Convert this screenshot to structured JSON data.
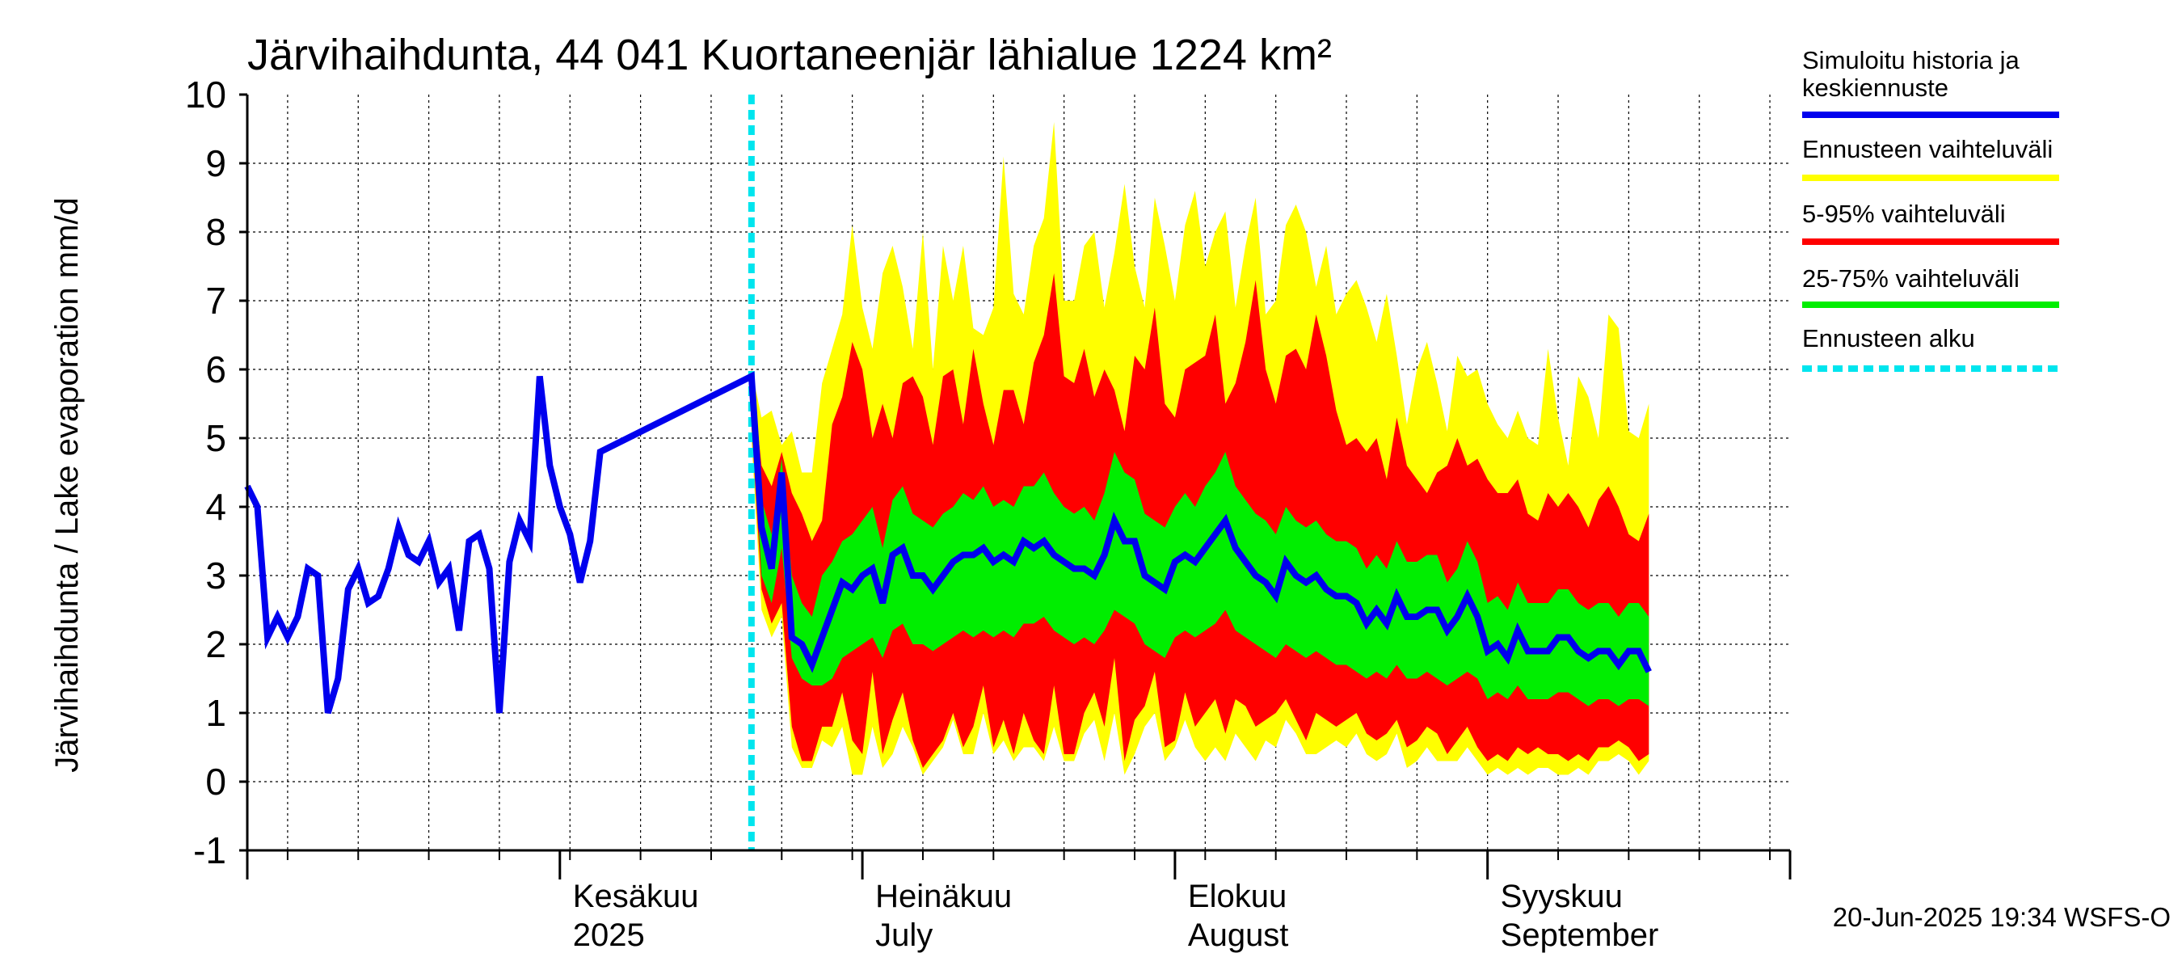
{
  "chart_data": {
    "type": "area",
    "title": "Järvihaihdunta, 44 041 Kuortaneenjär lähialue 1224 km²",
    "ylabel": "Järvihaihdunta / Lake evaporation   mm/d",
    "ylim": [
      -1,
      10
    ],
    "yticks": [
      "-1",
      "0",
      "1",
      "2",
      "3",
      "4",
      "5",
      "6",
      "7",
      "8",
      "9",
      "10"
    ],
    "x_start": "2025-05-01",
    "x_end": "2025-09-30",
    "forecast_start": "2025-06-20",
    "grid": true,
    "month_labels": [
      {
        "fi": "Kesäkuu",
        "en": "2025",
        "date": "2025-06-01"
      },
      {
        "fi": "Heinäkuu",
        "en": "July",
        "date": "2025-07-01"
      },
      {
        "fi": "Elokuu",
        "en": "August",
        "date": "2025-08-01"
      },
      {
        "fi": "Syyskuu",
        "en": "September",
        "date": "2025-09-01"
      }
    ],
    "history": {
      "start": "2025-05-01",
      "values": [
        4.3,
        4.0,
        2.1,
        2.4,
        2.1,
        2.4,
        3.1,
        3.0,
        1.0,
        1.5,
        2.8,
        3.1,
        2.6,
        2.7,
        3.1,
        3.7,
        3.3,
        3.2,
        3.5,
        2.9,
        3.1,
        2.2,
        3.5,
        3.6,
        3.1,
        1.0,
        3.2,
        3.8,
        3.5,
        5.9,
        4.6,
        4.0,
        3.6,
        2.9,
        3.5,
        4.8
      ]
    },
    "forecast": {
      "start": "2025-06-20",
      "mean": [
        5.9,
        3.7,
        3.1,
        4.5,
        2.1,
        2.0,
        1.7,
        2.1,
        2.5,
        2.9,
        2.8,
        3.0,
        3.1,
        2.6,
        3.3,
        3.4,
        3.0,
        3.0,
        2.8,
        3.0,
        3.2,
        3.3,
        3.3,
        3.4,
        3.2,
        3.3,
        3.2,
        3.5,
        3.4,
        3.5,
        3.3,
        3.2,
        3.1,
        3.1,
        3.0,
        3.3,
        3.8,
        3.5,
        3.5,
        3.0,
        2.9,
        2.8,
        3.2,
        3.3,
        3.2,
        3.4,
        3.6,
        3.8,
        3.4,
        3.2,
        3.0,
        2.9,
        2.7,
        3.2,
        3.0,
        2.9,
        3.0,
        2.8,
        2.7,
        2.7,
        2.6,
        2.3,
        2.5,
        2.3,
        2.7,
        2.4,
        2.4,
        2.5,
        2.5,
        2.2,
        2.4,
        2.7,
        2.4,
        1.9,
        2.0,
        1.8,
        2.2,
        1.9,
        1.9,
        1.9,
        2.1,
        2.1,
        1.9,
        1.8,
        1.9,
        1.9,
        1.7,
        1.9,
        1.9,
        1.6
      ],
      "p25": [
        5.6,
        3.0,
        2.6,
        3.4,
        1.8,
        1.5,
        1.4,
        1.4,
        1.5,
        1.8,
        1.9,
        2.0,
        2.1,
        1.8,
        2.2,
        2.3,
        2.0,
        2.0,
        1.9,
        2.0,
        2.1,
        2.2,
        2.1,
        2.2,
        2.1,
        2.2,
        2.1,
        2.3,
        2.3,
        2.4,
        2.2,
        2.1,
        2.0,
        2.1,
        2.0,
        2.2,
        2.5,
        2.4,
        2.3,
        2.0,
        1.9,
        1.8,
        2.1,
        2.2,
        2.1,
        2.2,
        2.3,
        2.5,
        2.2,
        2.1,
        2.0,
        1.9,
        1.8,
        2.0,
        1.9,
        1.8,
        1.9,
        1.8,
        1.7,
        1.7,
        1.6,
        1.5,
        1.6,
        1.5,
        1.7,
        1.5,
        1.5,
        1.6,
        1.5,
        1.4,
        1.5,
        1.6,
        1.5,
        1.2,
        1.3,
        1.2,
        1.4,
        1.2,
        1.2,
        1.2,
        1.3,
        1.3,
        1.2,
        1.1,
        1.2,
        1.2,
        1.1,
        1.2,
        1.2,
        1.1
      ],
      "p75": [
        6.0,
        4.1,
        3.6,
        4.7,
        3.0,
        2.6,
        2.4,
        3.0,
        3.2,
        3.5,
        3.6,
        3.8,
        4.0,
        3.4,
        4.1,
        4.3,
        3.9,
        3.8,
        3.7,
        3.9,
        4.0,
        4.2,
        4.1,
        4.3,
        4.0,
        4.1,
        4.0,
        4.3,
        4.3,
        4.5,
        4.2,
        4.0,
        3.9,
        4.0,
        3.8,
        4.2,
        4.8,
        4.5,
        4.4,
        3.9,
        3.8,
        3.7,
        4.0,
        4.2,
        4.0,
        4.3,
        4.5,
        4.8,
        4.3,
        4.1,
        3.9,
        3.8,
        3.6,
        4.0,
        3.8,
        3.7,
        3.8,
        3.6,
        3.5,
        3.5,
        3.4,
        3.1,
        3.3,
        3.1,
        3.5,
        3.2,
        3.2,
        3.3,
        3.3,
        2.9,
        3.1,
        3.5,
        3.2,
        2.6,
        2.7,
        2.5,
        2.9,
        2.6,
        2.6,
        2.6,
        2.8,
        2.8,
        2.6,
        2.5,
        2.6,
        2.6,
        2.4,
        2.6,
        2.6,
        2.4
      ],
      "p05": [
        5.2,
        2.8,
        2.3,
        2.6,
        0.8,
        0.3,
        0.3,
        0.8,
        0.8,
        1.3,
        0.6,
        0.4,
        1.6,
        0.4,
        0.9,
        1.3,
        0.6,
        0.2,
        0.4,
        0.6,
        1.0,
        0.5,
        0.8,
        1.4,
        0.5,
        0.9,
        0.4,
        1.0,
        0.6,
        0.4,
        1.4,
        0.4,
        0.4,
        1.0,
        1.3,
        0.8,
        1.8,
        0.3,
        0.9,
        1.1,
        1.6,
        0.5,
        0.6,
        1.3,
        0.8,
        1.0,
        1.2,
        0.7,
        1.2,
        1.1,
        0.8,
        0.9,
        1.0,
        1.2,
        0.9,
        0.6,
        1.0,
        0.9,
        0.8,
        0.9,
        1.0,
        0.7,
        0.6,
        0.7,
        0.9,
        0.5,
        0.6,
        0.8,
        0.7,
        0.4,
        0.6,
        0.8,
        0.5,
        0.3,
        0.4,
        0.3,
        0.5,
        0.4,
        0.5,
        0.4,
        0.4,
        0.3,
        0.4,
        0.3,
        0.5,
        0.5,
        0.6,
        0.5,
        0.3,
        0.4
      ],
      "p95": [
        6.0,
        4.6,
        4.3,
        4.8,
        4.2,
        3.9,
        3.5,
        3.8,
        5.2,
        5.6,
        6.4,
        6.0,
        5.0,
        5.5,
        5.0,
        5.8,
        5.9,
        5.6,
        4.9,
        5.9,
        6.0,
        5.2,
        6.3,
        5.5,
        4.9,
        5.7,
        5.7,
        5.2,
        6.1,
        6.5,
        7.4,
        5.9,
        5.8,
        6.3,
        5.6,
        6.0,
        5.7,
        5.1,
        6.2,
        6.0,
        6.9,
        5.5,
        5.3,
        6.0,
        6.1,
        6.2,
        6.8,
        5.5,
        5.8,
        6.4,
        7.3,
        6.0,
        5.5,
        6.2,
        6.3,
        6.0,
        6.8,
        6.2,
        5.4,
        4.9,
        5.0,
        4.8,
        5.0,
        4.4,
        5.3,
        4.6,
        4.4,
        4.2,
        4.5,
        4.6,
        5.0,
        4.6,
        4.7,
        4.4,
        4.2,
        4.2,
        4.4,
        3.9,
        3.8,
        4.2,
        4.0,
        4.2,
        4.0,
        3.7,
        4.1,
        4.3,
        4.0,
        3.6,
        3.5,
        3.9
      ],
      "min": [
        5.0,
        2.5,
        2.1,
        2.4,
        0.5,
        0.2,
        0.2,
        0.6,
        0.5,
        0.8,
        0.1,
        0.1,
        0.8,
        0.2,
        0.4,
        0.8,
        0.5,
        0.1,
        0.3,
        0.5,
        0.9,
        0.4,
        0.4,
        1.0,
        0.4,
        0.6,
        0.3,
        0.5,
        0.5,
        0.3,
        0.8,
        0.3,
        0.3,
        0.7,
        0.9,
        0.3,
        1.0,
        0.1,
        0.4,
        0.8,
        1.0,
        0.3,
        0.5,
        0.9,
        0.5,
        0.3,
        0.5,
        0.3,
        0.7,
        0.5,
        0.3,
        0.6,
        0.5,
        0.9,
        0.7,
        0.4,
        0.4,
        0.5,
        0.6,
        0.5,
        0.7,
        0.4,
        0.3,
        0.4,
        0.7,
        0.2,
        0.3,
        0.5,
        0.3,
        0.3,
        0.3,
        0.5,
        0.3,
        0.1,
        0.2,
        0.1,
        0.2,
        0.1,
        0.2,
        0.2,
        0.1,
        0.1,
        0.2,
        0.1,
        0.3,
        0.3,
        0.4,
        0.3,
        0.1,
        0.3
      ],
      "max": [
        6.0,
        5.3,
        5.4,
        4.9,
        5.1,
        4.5,
        4.5,
        5.8,
        6.3,
        6.8,
        8.1,
        6.9,
        6.3,
        7.4,
        7.8,
        7.2,
        6.3,
        8.0,
        6.0,
        7.8,
        7.0,
        7.8,
        6.6,
        6.5,
        6.9,
        9.1,
        7.1,
        6.8,
        7.8,
        8.2,
        9.6,
        7.0,
        7.0,
        7.8,
        8.0,
        6.9,
        7.7,
        8.7,
        7.5,
        6.9,
        8.5,
        7.8,
        7.0,
        8.1,
        8.6,
        7.5,
        8.0,
        8.3,
        6.9,
        7.8,
        8.5,
        6.8,
        7.0,
        8.1,
        8.4,
        8.0,
        7.2,
        7.8,
        6.8,
        7.1,
        7.3,
        6.9,
        6.4,
        7.1,
        6.2,
        5.2,
        6.0,
        6.4,
        5.8,
        5.1,
        6.2,
        5.9,
        6.0,
        5.5,
        5.2,
        5.0,
        5.4,
        5.0,
        4.9,
        6.3,
        5.3,
        4.6,
        5.9,
        5.6,
        5.0,
        6.8,
        6.6,
        5.1,
        5.0,
        5.5
      ]
    },
    "legend": [
      {
        "label": "Simuloitu historia ja keskiennuste",
        "line1": "Simuloitu historia ja",
        "line2": "keskiennuste",
        "color": "#0000ee"
      },
      {
        "label": "Ennusteen vaihteluväli",
        "color": "#ffff00"
      },
      {
        "label": "5-95% vaihteluväli",
        "color": "#ff0000"
      },
      {
        "label": "25-75% vaihteluväli",
        "color": "#00ee00"
      },
      {
        "label": "Ennusteen alku",
        "color": "#00e5ee"
      }
    ]
  },
  "footer": "20-Jun-2025 19:34 WSFS-O"
}
